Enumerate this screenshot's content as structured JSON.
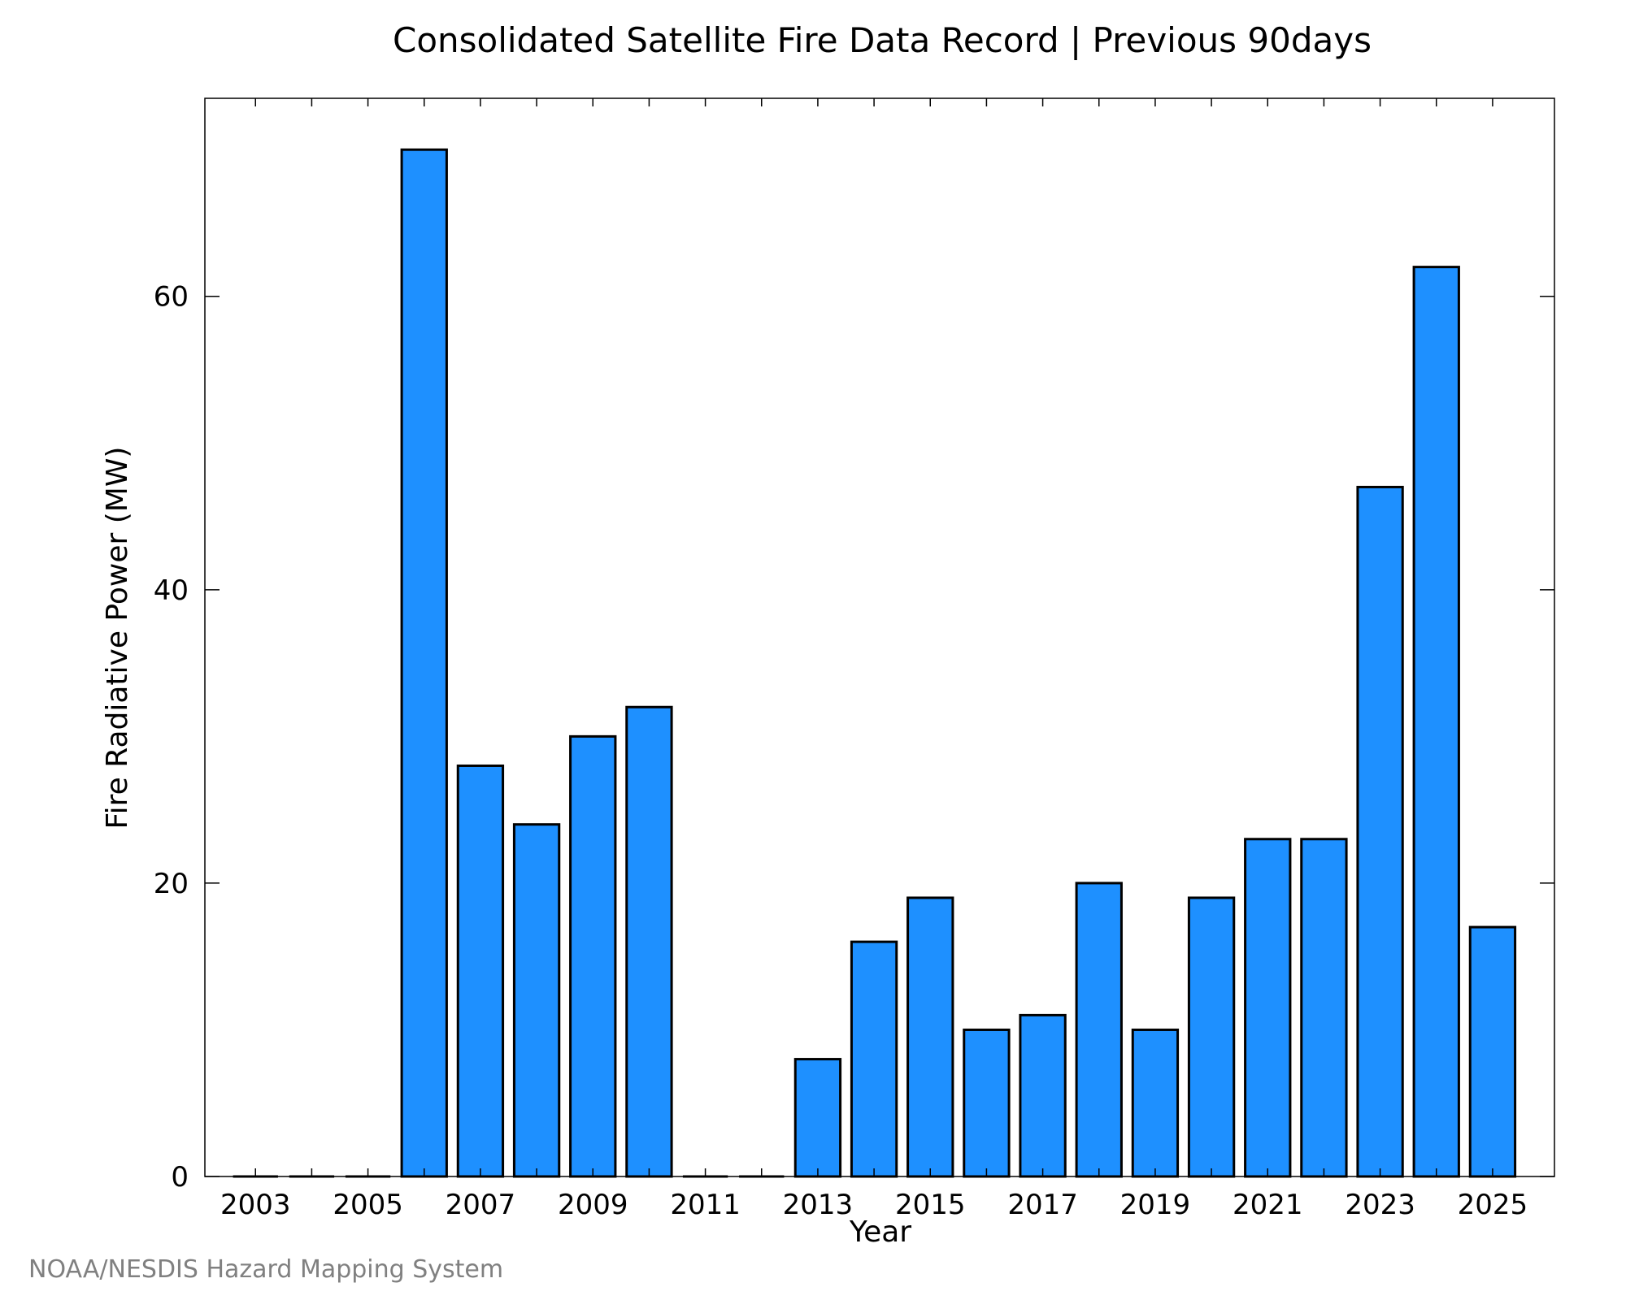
{
  "chart_data": {
    "type": "bar",
    "title": "Consolidated Satellite Fire Data Record | Previous 90days",
    "xlabel": "Year",
    "ylabel": "Fire Radiative Power (MW)",
    "categories": [
      2003,
      2004,
      2005,
      2006,
      2007,
      2008,
      2009,
      2010,
      2011,
      2012,
      2013,
      2014,
      2015,
      2016,
      2017,
      2018,
      2019,
      2020,
      2021,
      2022,
      2023,
      2024,
      2025
    ],
    "values": [
      0,
      0,
      0,
      70,
      28,
      24,
      30,
      32,
      0,
      0,
      8,
      16,
      19,
      10,
      11,
      20,
      10,
      19,
      23,
      23,
      47,
      62,
      17
    ],
    "x_tick_labels": [
      "2003",
      "2005",
      "2007",
      "2009",
      "2011",
      "2013",
      "2015",
      "2017",
      "2019",
      "2021",
      "2023",
      "2025"
    ],
    "y_tick_labels": [
      "0",
      "20",
      "40",
      "60"
    ],
    "y_ticks": [
      0,
      20,
      40,
      60
    ],
    "ylim": [
      0,
      73.5
    ],
    "xlim": [
      2002.1,
      2026.1
    ],
    "grid": false,
    "bar_color": "#1e90ff",
    "edge_color": "#000000"
  },
  "credit": "NOAA/NESDIS Hazard Mapping System"
}
